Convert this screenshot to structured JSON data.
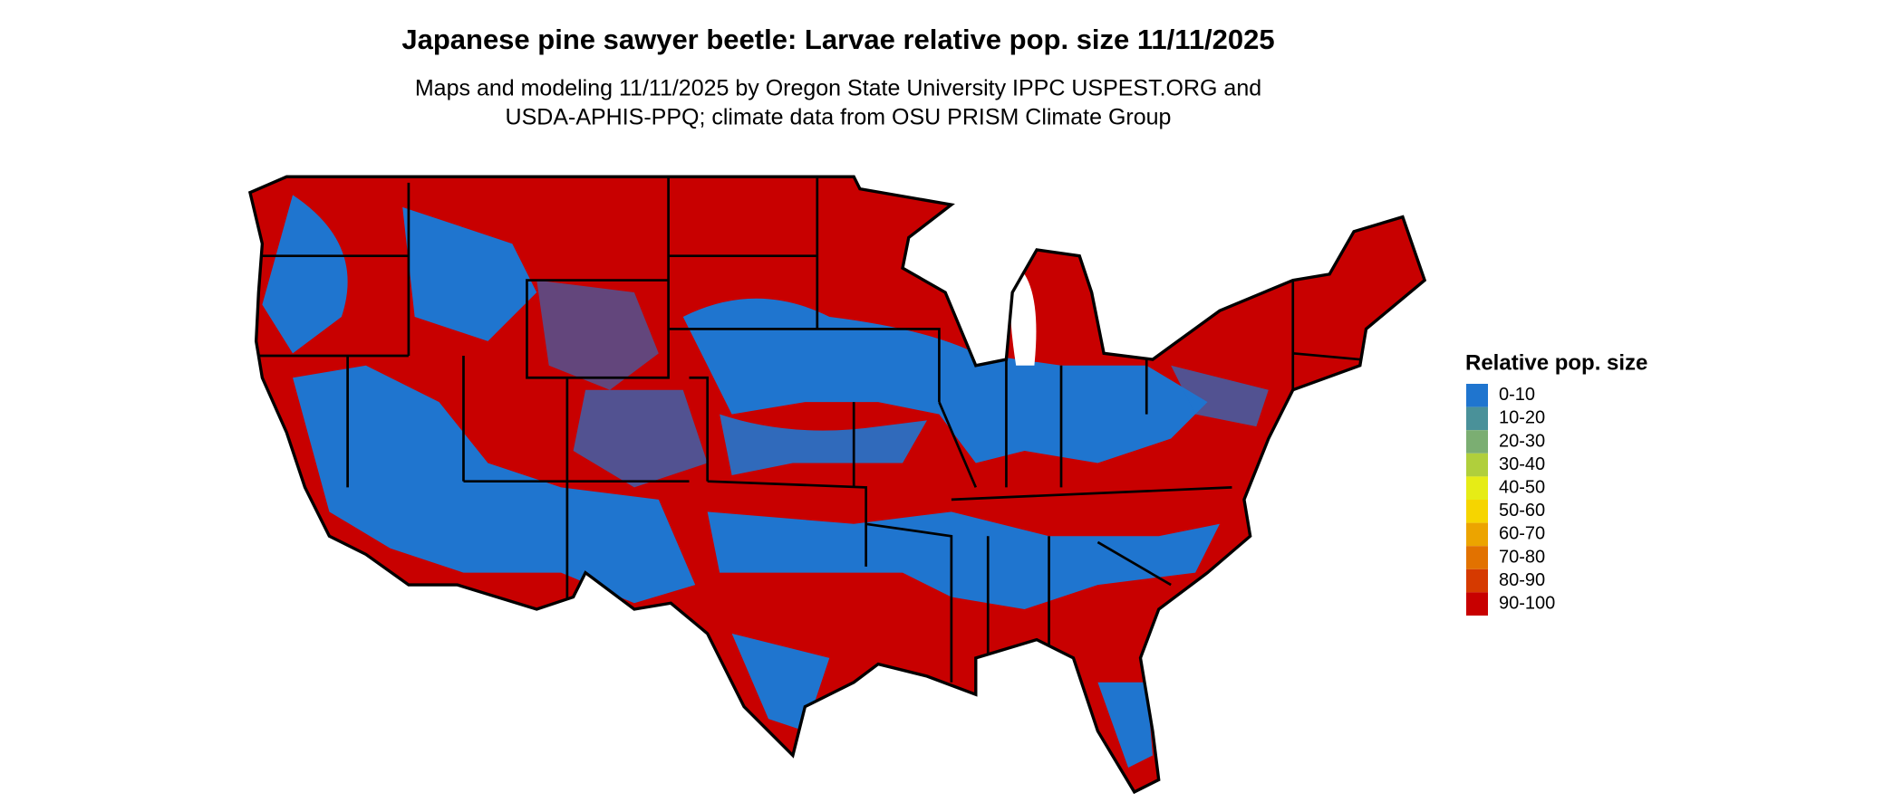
{
  "title": "Japanese pine sawyer beetle: Larvae relative pop. size 11/11/2025",
  "subtitle": [
    "Maps and modeling 11/11/2025 by Oregon State University IPPC USPEST.ORG and",
    "USDA-APHIS-PPQ; climate data from OSU PRISM Climate Group"
  ],
  "legend": {
    "title": "Relative pop. size",
    "items": [
      {
        "label": "0-10",
        "color": "#1f75cf"
      },
      {
        "label": "10-20",
        "color": "#4a9199"
      },
      {
        "label": "20-30",
        "color": "#7bae72"
      },
      {
        "label": "30-40",
        "color": "#b0cf3c"
      },
      {
        "label": "40-50",
        "color": "#e6ec16"
      },
      {
        "label": "50-60",
        "color": "#f6d500"
      },
      {
        "label": "60-70",
        "color": "#eca400"
      },
      {
        "label": "70-80",
        "color": "#e27200"
      },
      {
        "label": "80-90",
        "color": "#d63a00"
      },
      {
        "label": "90-100",
        "color": "#c80000"
      }
    ]
  }
}
